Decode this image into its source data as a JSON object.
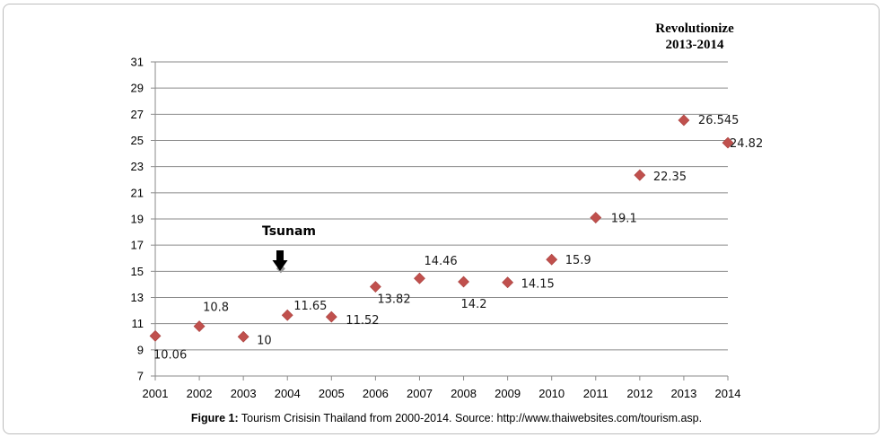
{
  "chart_data": {
    "type": "scatter",
    "x": [
      2001,
      2002,
      2003,
      2004,
      2005,
      2006,
      2007,
      2008,
      2009,
      2010,
      2011,
      2012,
      2013,
      2014
    ],
    "y": [
      10.06,
      10.8,
      10,
      11.65,
      11.52,
      13.82,
      14.46,
      14.2,
      14.15,
      15.9,
      19.1,
      22.35,
      26.545,
      24.82
    ],
    "data_labels": [
      "10.06",
      "10.8",
      "10",
      "11.65",
      "11.52",
      "13.82",
      "14.46",
      "14.2",
      "14.15",
      "15.9",
      "19.1",
      "22.35",
      "26.545",
      "24.82"
    ],
    "x_ticks": [
      "2001",
      "2002",
      "2003",
      "2004",
      "2005",
      "2006",
      "2007",
      "2008",
      "2009",
      "2010",
      "2011",
      "2012",
      "2013",
      "2014"
    ],
    "y_ticks": [
      "7",
      "9",
      "11",
      "13",
      "15",
      "17",
      "19",
      "21",
      "23",
      "25",
      "27",
      "29",
      "31"
    ],
    "ylim": [
      7,
      31
    ],
    "xlim": [
      2001,
      2014
    ],
    "grid": "horizontal",
    "legend": "none",
    "marker": "diamond",
    "marker_color": "#c0504d",
    "annotations": {
      "tsunami": {
        "label": "Tsunam",
        "year": 2004
      },
      "revolution": {
        "line1": "Revolutionize",
        "line2": "2013-2014"
      }
    }
  },
  "caption": {
    "prefix": "Figure 1:",
    "text": " Tourism Crisisin Thailand from 2000-2014. Source: http://www.thaiwebsites.com/tourism.asp."
  }
}
